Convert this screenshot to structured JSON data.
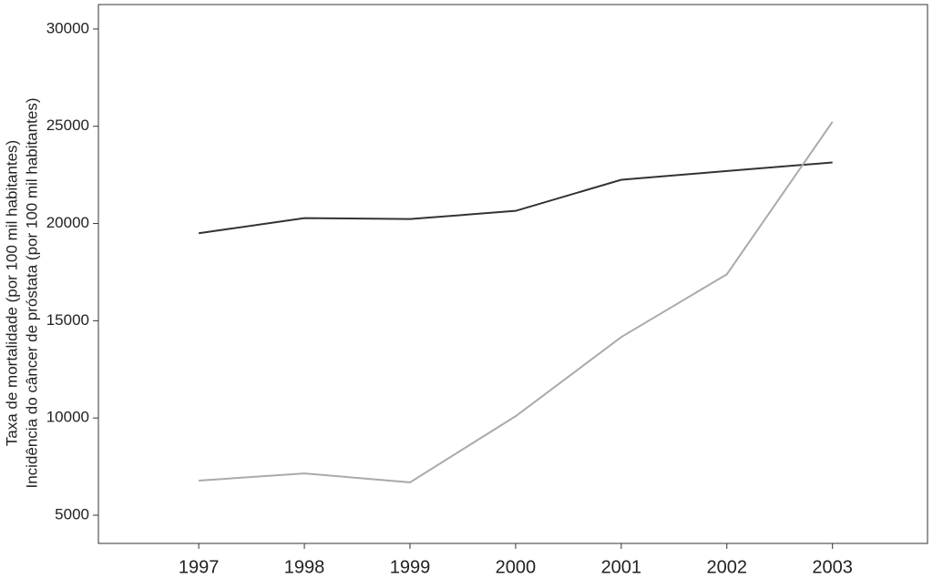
{
  "chart_data": {
    "type": "line",
    "ylabel": [
      "Taxa de mortalidade (por 100 mil habitantes)",
      "Incidência do câncer de próstata (por 100 mil habitantes)"
    ],
    "x": [
      1997,
      1998,
      1999,
      2000,
      2001,
      2002,
      2003
    ],
    "series": [
      {
        "color": "#333333",
        "values": [
          19500,
          20280,
          20230,
          20650,
          22250,
          22700,
          23140
        ]
      },
      {
        "color": "#aaaaaa",
        "values": [
          6780,
          7150,
          6690,
          10090,
          14160,
          17390,
          25230
        ]
      }
    ],
    "xlim": [
      1996.05,
      2003.9
    ],
    "xticks": [
      1997,
      1998,
      1999,
      2000,
      2001,
      2002,
      2003
    ],
    "ylim": [
      3550,
      31260
    ],
    "yticks": [
      5000,
      10000,
      15000,
      20000,
      25000,
      30000
    ]
  }
}
